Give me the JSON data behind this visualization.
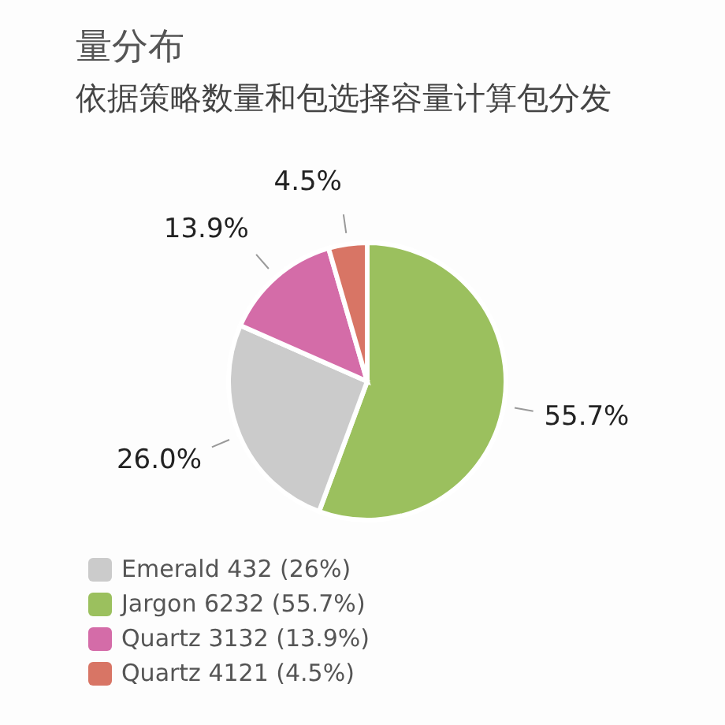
{
  "chart_data": {
    "type": "pie",
    "title": "量分布",
    "subtitle": "依据策略数量和包选择容量计算包分发",
    "categories": [
      "Jargon 6232 (55.7%)",
      "Emerald 432 (26%)",
      "Quartz 3132 (13.9%)",
      "Quartz 4121 (4.5%)"
    ],
    "values": [
      55.7,
      26.0,
      13.9,
      4.5
    ],
    "colors": [
      "#9bc05e",
      "#cbcbcb",
      "#d46ca8",
      "#d87565"
    ],
    "value_labels": [
      "55.7%",
      "26.0%",
      "13.9%",
      "4.5%"
    ],
    "legend": "bottom left"
  }
}
